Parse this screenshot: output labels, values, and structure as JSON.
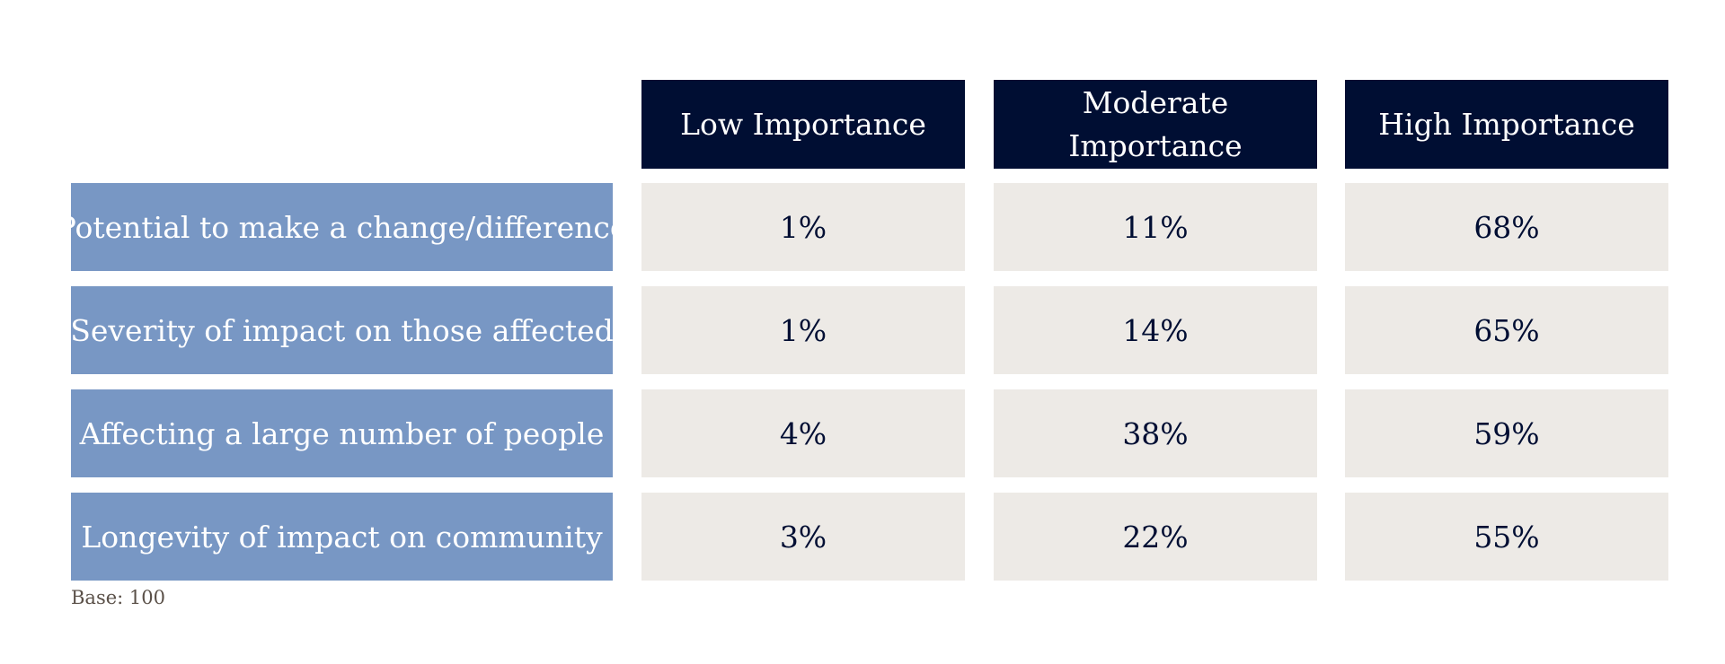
{
  "chart_data": {
    "type": "table",
    "columns": [
      "Low Importance",
      "Moderate Importance",
      "High Importance"
    ],
    "rows": [
      {
        "label": "Potential to make a change/difference",
        "values": [
          "1%",
          "11%",
          "68%"
        ]
      },
      {
        "label": "Severity of impact on those affected",
        "values": [
          "1%",
          "14%",
          "65%"
        ]
      },
      {
        "label": "Affecting a large number of people",
        "values": [
          "4%",
          "38%",
          "59%"
        ]
      },
      {
        "label": "Longevity of impact on community",
        "values": [
          "3%",
          "22%",
          "55%"
        ]
      }
    ],
    "footnote": "Base: 100"
  },
  "colors": {
    "header_bg": "#000e33",
    "row_label_bg": "#7897c4",
    "value_bg": "#edeae6",
    "value_text": "#000e33"
  }
}
